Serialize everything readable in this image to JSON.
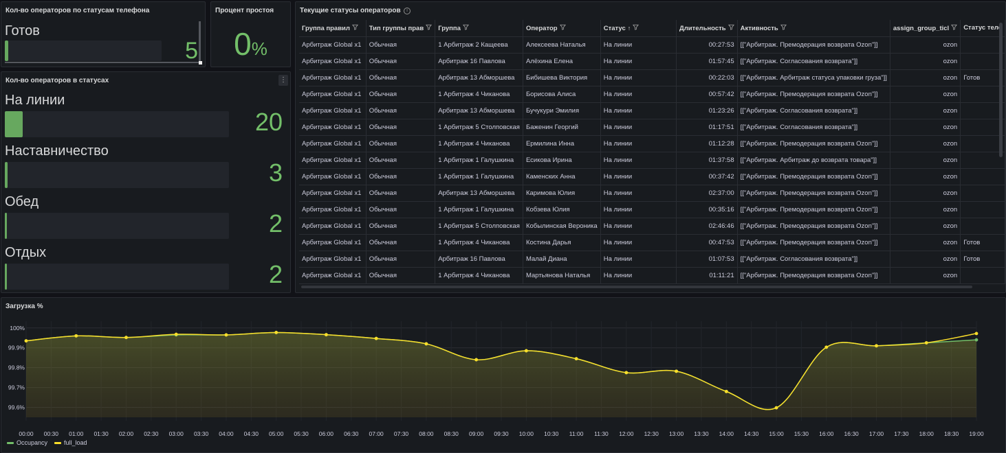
{
  "ready_panel": {
    "title": "Кол-во операторов по статусам телефона",
    "label": "Готов",
    "value": "5",
    "fill_fraction": 0.02
  },
  "idle_panel": {
    "title": "Процент простоя",
    "value": "0",
    "unit": "%"
  },
  "statuses_panel": {
    "title": "Кол-во операторов в статусах",
    "menu": "⋮",
    "items": [
      {
        "label": "На линии",
        "value": "20",
        "fill_fraction": 0.08
      },
      {
        "label": "Наставничество",
        "value": "3",
        "fill_fraction": 0.012
      },
      {
        "label": "Обед",
        "value": "2",
        "fill_fraction": 0.008
      },
      {
        "label": "Отдых",
        "value": "2",
        "fill_fraction": 0.008
      }
    ]
  },
  "table_panel": {
    "title": "Текущие статусы операторов",
    "info_icon": "i",
    "columns": [
      "Группа правил",
      "Тип группы прав",
      "Группа",
      "Оператор",
      "Статус",
      "Длительность",
      "Активность",
      "assign_group_ticl",
      "Статус теле"
    ],
    "sort_arrow": "↑",
    "rows": [
      [
        "Арбитраж Global x1",
        "Обычная",
        "1 Арбитраж 2 Кащеева",
        "Алексеева Наталья",
        "На линии",
        "00:27:53",
        "[[\"Арбитраж. Премодерация возврата Ozon\"]]",
        "ozon",
        ""
      ],
      [
        "Арбитраж Global x1",
        "Обычная",
        "Арбитраж 16 Павлова",
        "Алёхина Елена",
        "На линии",
        "01:57:45",
        "[[\"Арбитраж. Согласования возврата\"]]",
        "ozon",
        ""
      ],
      [
        "Арбитраж Global x1",
        "Обычная",
        "Арбитраж 13 Абморшева",
        "Бибишева Виктория",
        "На линии",
        "00:22:03",
        "[[\"Арбитраж. Арбитраж статуса упаковки груза\"]]",
        "ozon",
        "Готов"
      ],
      [
        "Арбитраж Global x1",
        "Обычная",
        "1 Арбитраж 4 Чиканова",
        "Борисова Алиса",
        "На линии",
        "00:57:42",
        "[[\"Арбитраж. Премодерация возврата Ozon\"]]",
        "ozon",
        ""
      ],
      [
        "Арбитраж Global x1",
        "Обычная",
        "Арбитраж 13 Абморшева",
        "Бучукури Эмилия",
        "На линии",
        "01:23:26",
        "[[\"Арбитраж. Согласования возврата\"]]",
        "ozon",
        ""
      ],
      [
        "Арбитраж Global x1",
        "Обычная",
        "1 Арбитраж 5 Столповская",
        "Баженин Георгий",
        "На линии",
        "01:17:51",
        "[[\"Арбитраж. Согласования возврата\"]]",
        "ozon",
        ""
      ],
      [
        "Арбитраж Global x1",
        "Обычная",
        "1 Арбитраж 4 Чиканова",
        "Ермилина Инна",
        "На линии",
        "01:12:28",
        "[[\"Арбитраж. Премодерация возврата Ozon\"]]",
        "ozon",
        ""
      ],
      [
        "Арбитраж Global x1",
        "Обычная",
        "1 Арбитраж 1 Галушкина",
        "Есикова Ирина",
        "На линии",
        "01:37:58",
        "[[\"Арбитраж. Арбитраж до возврата товара\"]]",
        "ozon",
        ""
      ],
      [
        "Арбитраж Global x1",
        "Обычная",
        "1 Арбитраж 1 Галушкина",
        "Каменских Анна",
        "На линии",
        "00:37:42",
        "[[\"Арбитраж. Премодерация возврата Ozon\"]]",
        "ozon",
        ""
      ],
      [
        "Арбитраж Global x1",
        "Обычная",
        "Арбитраж 13 Абморшева",
        "Каримова Юлия",
        "На линии",
        "02:37:00",
        "[[\"Арбитраж. Премодерация возврата Ozon\"]]",
        "ozon",
        ""
      ],
      [
        "Арбитраж Global x1",
        "Обычная",
        "1 Арбитраж 1 Галушкина",
        "Кобзева Юлия",
        "На линии",
        "00:35:16",
        "[[\"Арбитраж. Премодерация возврата Ozon\"]]",
        "ozon",
        ""
      ],
      [
        "Арбитраж Global x1",
        "Обычная",
        "1 Арбитраж 5 Столповская",
        "Кобылинская Вероника",
        "На линии",
        "02:46:46",
        "[[\"Арбитраж. Премодерация возврата Ozon\"]]",
        "ozon",
        ""
      ],
      [
        "Арбитраж Global x1",
        "Обычная",
        "1 Арбитраж 4 Чиканова",
        "Костина Дарья",
        "На линии",
        "00:47:53",
        "[[\"Арбитраж. Премодерация возврата Ozon\"]]",
        "ozon",
        "Готов"
      ],
      [
        "Арбитраж Global x1",
        "Обычная",
        "Арбитраж 16 Павлова",
        "Малай Диана",
        "На линии",
        "01:07:53",
        "[[\"Арбитраж. Согласования возврата\"]]",
        "ozon",
        "Готов"
      ],
      [
        "Арбитраж Global x1",
        "Обычная",
        "1 Арбитраж 4 Чиканова",
        "Мартьянова Наталья",
        "На линии",
        "01:11:21",
        "[[\"Арбитраж. Премодерация возврата Ozon\"]]",
        "ozon",
        ""
      ]
    ]
  },
  "chart_data": {
    "type": "line",
    "title": "Загрузка %",
    "ylim": [
      99.55,
      100.02
    ],
    "yticks": [
      99.6,
      99.7,
      99.8,
      99.9,
      100
    ],
    "ytick_labels": [
      "99.6%",
      "99.7%",
      "99.8%",
      "99.9%",
      "100%"
    ],
    "x_labels": [
      "00:00",
      "00:30",
      "01:00",
      "01:30",
      "02:00",
      "02:30",
      "03:00",
      "03:30",
      "04:00",
      "04:30",
      "05:00",
      "05:30",
      "06:00",
      "06:30",
      "07:00",
      "07:30",
      "08:00",
      "08:30",
      "09:00",
      "09:30",
      "10:00",
      "10:30",
      "11:00",
      "11:30",
      "12:00",
      "12:30",
      "13:00",
      "13:30",
      "14:00",
      "14:30",
      "15:00",
      "15:30",
      "16:00",
      "16:30",
      "17:00",
      "17:30",
      "18:00",
      "18:30",
      "19:00"
    ],
    "x_hours": [
      0,
      1,
      2,
      3,
      4,
      5,
      6,
      7,
      8,
      9,
      10,
      11,
      12,
      13,
      14,
      15,
      16,
      17,
      18,
      19
    ],
    "series": [
      {
        "name": "Occupancy",
        "color": "#73bf69",
        "values": [
          99.935,
          99.96,
          99.952,
          99.965,
          99.965,
          99.977,
          99.966,
          99.947,
          99.92,
          99.84,
          99.885,
          99.845,
          99.775,
          99.782,
          99.68,
          99.598,
          99.903,
          99.91,
          99.925,
          99.94
        ]
      },
      {
        "name": "full_load",
        "color": "#fade2a",
        "values": [
          99.935,
          99.96,
          99.952,
          99.968,
          99.965,
          99.977,
          99.966,
          99.947,
          99.92,
          99.84,
          99.885,
          99.845,
          99.775,
          99.782,
          99.68,
          99.598,
          99.903,
          99.91,
          99.925,
          99.972
        ]
      }
    ]
  }
}
